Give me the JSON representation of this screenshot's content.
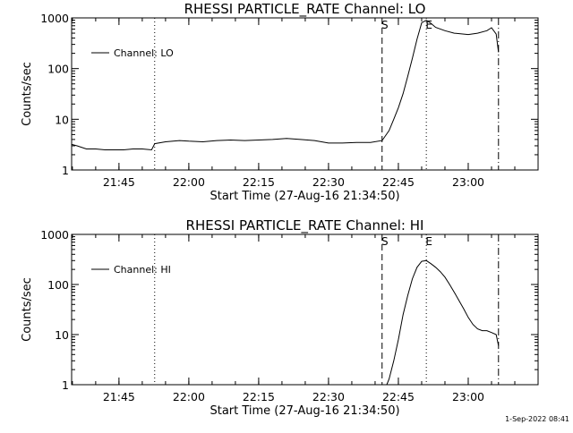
{
  "chart_data": [
    {
      "type": "line",
      "title": "RHESSI PARTICLE_RATE Channel: LO",
      "xlabel": "Start Time (27-Aug-16 21:34:50)",
      "ylabel": "Counts/sec",
      "yscale": "log",
      "ylim": [
        1,
        1000
      ],
      "y_ticks": [
        "1",
        "10",
        "100",
        "1000"
      ],
      "x_ticks": [
        "21:45",
        "22:00",
        "22:15",
        "22:30",
        "22:45",
        "23:00"
      ],
      "xlim": [
        "21:34:50",
        "23:15:00"
      ],
      "grid": false,
      "legend": "top-left",
      "markers": [
        {
          "label": "",
          "time": "21:52:40",
          "style": "dotted"
        },
        {
          "label": "S",
          "time": "22:41:30",
          "style": "dashed"
        },
        {
          "label": "E",
          "time": "22:51:00",
          "style": "dotted"
        },
        {
          "label": "",
          "time": "23:06:30",
          "style": "dash-dot"
        }
      ],
      "series": [
        {
          "name": "Channel: LO",
          "x": [
            "21:34:50",
            "21:36",
            "21:38",
            "21:40",
            "21:42",
            "21:44",
            "21:46",
            "21:48",
            "21:50",
            "21:52",
            "21:52:40",
            "21:55",
            "21:58",
            "22:00",
            "22:03",
            "22:06",
            "22:09",
            "22:12",
            "22:15",
            "22:18",
            "22:21",
            "22:24",
            "22:27",
            "22:30",
            "22:33",
            "22:36",
            "22:39",
            "22:41:30",
            "22:43",
            "22:44",
            "22:45",
            "22:46",
            "22:47",
            "22:48",
            "22:49",
            "22:50",
            "22:51",
            "22:52",
            "22:53",
            "22:55",
            "22:57",
            "23:00",
            "23:02",
            "23:04",
            "23:05",
            "23:06",
            "23:06:30"
          ],
          "values": [
            3.2,
            3.0,
            2.6,
            2.6,
            2.5,
            2.5,
            2.5,
            2.6,
            2.6,
            2.5,
            3.3,
            3.6,
            3.8,
            3.7,
            3.6,
            3.8,
            3.9,
            3.8,
            3.9,
            4.0,
            4.2,
            4.0,
            3.8,
            3.4,
            3.4,
            3.5,
            3.5,
            3.8,
            6,
            10,
            17,
            32,
            70,
            160,
            380,
            800,
            900,
            780,
            650,
            560,
            500,
            470,
            500,
            560,
            640,
            480,
            210
          ]
        }
      ]
    },
    {
      "type": "line",
      "title": "RHESSI PARTICLE_RATE Channel: HI",
      "xlabel": "Start Time (27-Aug-16 21:34:50)",
      "ylabel": "Counts/sec",
      "yscale": "log",
      "ylim": [
        1,
        1000
      ],
      "y_ticks": [
        "1",
        "10",
        "100",
        "1000"
      ],
      "x_ticks": [
        "21:45",
        "22:00",
        "22:15",
        "22:30",
        "22:45",
        "23:00"
      ],
      "xlim": [
        "21:34:50",
        "23:15:00"
      ],
      "grid": false,
      "legend": "top-left",
      "markers": [
        {
          "label": "",
          "time": "21:52:40",
          "style": "dotted"
        },
        {
          "label": "S",
          "time": "22:41:30",
          "style": "dashed"
        },
        {
          "label": "E",
          "time": "22:51:00",
          "style": "dotted"
        },
        {
          "label": "",
          "time": "23:06:30",
          "style": "dash-dot"
        }
      ],
      "series": [
        {
          "name": "Channel: HI",
          "x": [
            "22:42:30",
            "22:43",
            "22:44",
            "22:45",
            "22:46",
            "22:47",
            "22:48",
            "22:49",
            "22:50",
            "22:51",
            "22:52",
            "22:53",
            "22:54",
            "22:55",
            "22:56",
            "22:57",
            "22:58",
            "22:59",
            "23:00",
            "23:01",
            "23:02",
            "23:03",
            "23:04",
            "23:05",
            "23:06",
            "23:06:30"
          ],
          "values": [
            1,
            1.3,
            3,
            8,
            25,
            60,
            130,
            220,
            290,
            300,
            260,
            220,
            180,
            140,
            100,
            70,
            48,
            33,
            22,
            16,
            13,
            12,
            12,
            11,
            10,
            6
          ]
        }
      ]
    }
  ],
  "footer": {
    "timestamp": "1-Sep-2022 08:41"
  }
}
